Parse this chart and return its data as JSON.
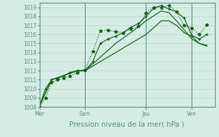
{
  "xlabel": "Pression niveau de la mer( hPa )",
  "background_color": "#d4ede4",
  "grid_color": "#b8d8cc",
  "line_color1": "#1a5c1a",
  "line_color2": "#2d6e2d",
  "ylim": [
    1008,
    1019.5
  ],
  "yticks": [
    1008,
    1009,
    1010,
    1011,
    1012,
    1013,
    1014,
    1015,
    1016,
    1017,
    1018,
    1019
  ],
  "day_labels": [
    "Mer",
    "Sam",
    "Jeu",
    "Ven"
  ],
  "day_positions": [
    0,
    3,
    7,
    10
  ],
  "xlim": [
    0,
    11.5
  ],
  "series": [
    {
      "x": [
        0,
        0.4,
        0.8,
        1.2,
        1.6,
        2.0,
        2.5,
        3.0,
        3.5,
        4.0,
        4.5,
        5.0,
        5.5,
        6.0,
        6.5,
        7.0,
        7.5,
        8.0,
        8.5,
        9.0,
        9.5,
        10.0,
        10.5,
        11.0
      ],
      "y": [
        1008.0,
        1009.0,
        1010.7,
        1011.0,
        1011.2,
        1011.4,
        1011.8,
        1012.1,
        1014.1,
        1016.4,
        1016.5,
        1016.3,
        1016.2,
        1016.6,
        1016.9,
        1018.4,
        1019.0,
        1019.0,
        1019.2,
        1018.5,
        1017.0,
        1016.7,
        1016.0,
        1017.1
      ],
      "linestyle": ":",
      "marker": "*",
      "markersize": 3.5,
      "linewidth": 0.9,
      "color": "#1a5c1a"
    },
    {
      "x": [
        0,
        0.4,
        0.8,
        1.2,
        1.6,
        2.0,
        2.5,
        3.0,
        3.5,
        4.0,
        4.5,
        5.0,
        5.5,
        6.0,
        6.5,
        7.0,
        7.5,
        8.0,
        8.5,
        9.0,
        9.5,
        10.0,
        10.5,
        11.0
      ],
      "y": [
        1008.1,
        1010.0,
        1011.0,
        1011.2,
        1011.4,
        1011.8,
        1012.0,
        1012.0,
        1013.0,
        1015.0,
        1015.5,
        1015.8,
        1016.2,
        1016.8,
        1017.2,
        1018.0,
        1018.9,
        1019.2,
        1018.8,
        1018.5,
        1017.8,
        1015.9,
        1015.5,
        1016.0
      ],
      "linestyle": "-",
      "marker": "+",
      "markersize": 3.5,
      "linewidth": 0.9,
      "color": "#1a5c1a"
    },
    {
      "x": [
        0,
        0.8,
        1.5,
        2.5,
        3.0,
        4.0,
        5.0,
        6.0,
        7.0,
        8.0,
        8.5,
        9.0,
        9.5,
        10.0,
        10.5,
        11.0
      ],
      "y": [
        1008.1,
        1011.0,
        1011.4,
        1012.0,
        1012.0,
        1013.5,
        1015.0,
        1016.2,
        1017.5,
        1018.6,
        1018.4,
        1017.5,
        1016.5,
        1015.5,
        1015.0,
        1014.7
      ],
      "linestyle": "-",
      "marker": null,
      "markersize": 0,
      "linewidth": 0.9,
      "color": "#1a5c1a"
    },
    {
      "x": [
        0,
        0.8,
        1.5,
        2.5,
        3.0,
        4.0,
        5.0,
        6.0,
        7.0,
        8.0,
        8.5,
        9.0,
        9.5,
        10.0,
        10.5,
        11.0
      ],
      "y": [
        1008.1,
        1011.0,
        1011.4,
        1012.0,
        1012.0,
        1013.0,
        1014.0,
        1015.0,
        1016.0,
        1017.5,
        1017.5,
        1017.0,
        1016.2,
        1015.8,
        1015.0,
        1014.8
      ],
      "linestyle": "-",
      "marker": null,
      "markersize": 0,
      "linewidth": 0.9,
      "color": "#1a5c1a"
    }
  ],
  "vlines_x": [
    3,
    7,
    10
  ],
  "vline_color": "#5a8a7a",
  "tick_fontsize": 5.5,
  "label_fontsize": 7.5,
  "spine_color": "#5a8a7a"
}
